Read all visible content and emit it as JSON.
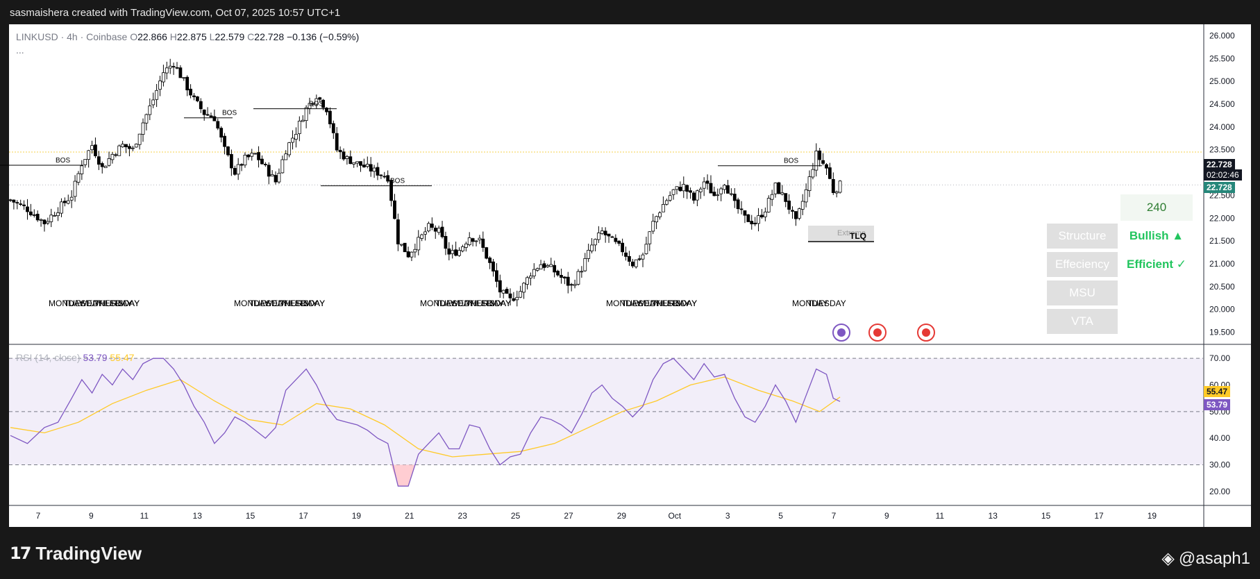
{
  "header": {
    "credit": "sasmaishera created with TradingView.com, Oct 07, 2025 10:57 UTC+1"
  },
  "legend": {
    "symbol": "LINKUSD · 4h · Coinbase",
    "open_label": "O",
    "open": "22.866",
    "high_label": "H",
    "high": "22.875",
    "low_label": "L",
    "low": "22.579",
    "close_label": "C",
    "close": "22.728",
    "change": "−0.136 (−0.59%)",
    "more": "..."
  },
  "price_labels": {
    "last": "22.728",
    "countdown": "02:02:46",
    "second": "22.728"
  },
  "rsi": {
    "title": "RSI (14, close)",
    "value": "53.79",
    "ma_value": "55.47"
  },
  "panel": {
    "timeframe": "240",
    "rows": [
      {
        "label": "Structure",
        "value": "Bullish ▲"
      },
      {
        "label": "Effeciency",
        "value": "Efficient ✓"
      },
      {
        "label": "MSU",
        "value": ""
      },
      {
        "label": "VTA",
        "value": ""
      }
    ]
  },
  "zone": {
    "label": "Extreme",
    "tag": "TLQ"
  },
  "branding": {
    "logo": "TradingView",
    "handle": "@asaph1"
  },
  "colors": {
    "up": "#ffffff",
    "down": "#000000",
    "rsi": "#7e57c2",
    "rsi_ma": "#ffca28",
    "bullish": "#22c55e",
    "last_price": "#131722",
    "second_price": "#26877a"
  },
  "chart_data": [
    {
      "type": "candlestick",
      "title": "LINKUSD · 4h · Coinbase",
      "ylim": [
        19.25,
        26.25
      ],
      "y_ticks": [
        "26.000",
        "25.500",
        "25.000",
        "24.500",
        "24.000",
        "23.500",
        "23.000",
        "22.500",
        "22.000",
        "21.500",
        "21.000",
        "20.500",
        "20.000",
        "19.500"
      ],
      "x_ticks": [
        "7",
        "9",
        "11",
        "13",
        "15",
        "17",
        "19",
        "21",
        "23",
        "25",
        "27",
        "29",
        "Oct",
        "3",
        "5",
        "7",
        "9",
        "11",
        "13",
        "15",
        "17",
        "19"
      ],
      "close_path": [
        [
          0,
          22.4
        ],
        [
          5,
          22.2
        ],
        [
          10,
          21.9
        ],
        [
          14,
          22.2
        ],
        [
          18,
          22.5
        ],
        [
          21,
          23.2
        ],
        [
          24,
          23.6
        ],
        [
          27,
          23.1
        ],
        [
          30,
          23.4
        ],
        [
          33,
          23.6
        ],
        [
          36,
          23.5
        ],
        [
          39,
          24.1
        ],
        [
          42,
          24.6
        ],
        [
          45,
          25.2
        ],
        [
          48,
          25.4
        ],
        [
          51,
          25.0
        ],
        [
          54,
          24.6
        ],
        [
          57,
          24.3
        ],
        [
          60,
          24.2
        ],
        [
          63,
          23.5
        ],
        [
          66,
          23.0
        ],
        [
          69,
          23.3
        ],
        [
          72,
          23.4
        ],
        [
          75,
          23.1
        ],
        [
          78,
          22.8
        ],
        [
          81,
          23.5
        ],
        [
          84,
          23.9
        ],
        [
          87,
          24.4
        ],
        [
          90,
          24.7
        ],
        [
          93,
          24.4
        ],
        [
          96,
          23.5
        ],
        [
          99,
          23.3
        ],
        [
          102,
          23.2
        ],
        [
          105,
          23.1
        ],
        [
          108,
          23.0
        ],
        [
          111,
          22.9
        ],
        [
          114,
          21.5
        ],
        [
          117,
          21.2
        ],
        [
          120,
          21.5
        ],
        [
          123,
          21.8
        ],
        [
          126,
          21.7
        ],
        [
          129,
          21.2
        ],
        [
          132,
          21.3
        ],
        [
          135,
          21.6
        ],
        [
          138,
          21.5
        ],
        [
          141,
          21.0
        ],
        [
          144,
          20.4
        ],
        [
          147,
          20.2
        ],
        [
          150,
          20.4
        ],
        [
          153,
          20.8
        ],
        [
          156,
          21.0
        ],
        [
          159,
          20.9
        ],
        [
          162,
          20.7
        ],
        [
          165,
          20.5
        ],
        [
          168,
          20.9
        ],
        [
          171,
          21.4
        ],
        [
          174,
          21.7
        ],
        [
          177,
          21.5
        ],
        [
          180,
          21.3
        ],
        [
          183,
          21.0
        ],
        [
          186,
          21.2
        ],
        [
          189,
          21.9
        ],
        [
          192,
          22.3
        ],
        [
          195,
          22.6
        ],
        [
          198,
          22.7
        ],
        [
          201,
          22.4
        ],
        [
          204,
          22.8
        ],
        [
          207,
          22.5
        ],
        [
          210,
          22.8
        ],
        [
          213,
          22.3
        ],
        [
          216,
          22.0
        ],
        [
          219,
          21.9
        ],
        [
          222,
          22.2
        ],
        [
          225,
          22.7
        ],
        [
          228,
          22.4
        ],
        [
          231,
          21.9
        ],
        [
          234,
          22.6
        ],
        [
          237,
          23.4
        ],
        [
          240,
          23.1
        ],
        [
          242,
          22.6
        ],
        [
          244,
          22.73
        ]
      ],
      "annotations": [
        "BOS",
        "BOS",
        "BOS",
        "BOS",
        "BOS",
        "Extreme",
        "TLQ"
      ],
      "weekday_labels": [
        "MONDAY",
        "TUESDAY",
        "WEDNESDAY",
        "THURSDAY",
        "FRIDAY"
      ]
    },
    {
      "type": "line",
      "title": "RSI (14, close)",
      "ylim": [
        15,
        75
      ],
      "y_ticks": [
        "70.00",
        "60.00",
        "50.00",
        "40.00",
        "30.00",
        "20.00"
      ],
      "bands": [
        30,
        50,
        70
      ],
      "series": [
        {
          "name": "RSI (14, close)",
          "values": [
            [
              0,
              41
            ],
            [
              5,
              38
            ],
            [
              10,
              44
            ],
            [
              14,
              46
            ],
            [
              18,
              55
            ],
            [
              21,
              62
            ],
            [
              24,
              57
            ],
            [
              27,
              64
            ],
            [
              30,
              60
            ],
            [
              33,
              66
            ],
            [
              36,
              62
            ],
            [
              39,
              68
            ],
            [
              42,
              70
            ],
            [
              45,
              70
            ],
            [
              48,
              66
            ],
            [
              51,
              60
            ],
            [
              54,
              52
            ],
            [
              57,
              46
            ],
            [
              60,
              38
            ],
            [
              63,
              42
            ],
            [
              66,
              48
            ],
            [
              69,
              46
            ],
            [
              72,
              43
            ],
            [
              75,
              40
            ],
            [
              78,
              44
            ],
            [
              81,
              58
            ],
            [
              84,
              62
            ],
            [
              87,
              66
            ],
            [
              90,
              60
            ],
            [
              93,
              52
            ],
            [
              96,
              47
            ],
            [
              99,
              46
            ],
            [
              102,
              45
            ],
            [
              105,
              43
            ],
            [
              108,
              40
            ],
            [
              111,
              38
            ],
            [
              114,
              22
            ],
            [
              117,
              22
            ],
            [
              120,
              34
            ],
            [
              123,
              38
            ],
            [
              126,
              42
            ],
            [
              129,
              36
            ],
            [
              132,
              36
            ],
            [
              135,
              45
            ],
            [
              138,
              44
            ],
            [
              141,
              36
            ],
            [
              144,
              30
            ],
            [
              147,
              33
            ],
            [
              150,
              34
            ],
            [
              153,
              42
            ],
            [
              156,
              48
            ],
            [
              159,
              47
            ],
            [
              162,
              45
            ],
            [
              165,
              42
            ],
            [
              168,
              49
            ],
            [
              171,
              57
            ],
            [
              174,
              60
            ],
            [
              177,
              55
            ],
            [
              180,
              52
            ],
            [
              183,
              48
            ],
            [
              186,
              52
            ],
            [
              189,
              62
            ],
            [
              192,
              68
            ],
            [
              195,
              70
            ],
            [
              198,
              66
            ],
            [
              201,
              62
            ],
            [
              204,
              68
            ],
            [
              207,
              63
            ],
            [
              210,
              64
            ],
            [
              213,
              55
            ],
            [
              216,
              48
            ],
            [
              219,
              46
            ],
            [
              222,
              52
            ],
            [
              225,
              60
            ],
            [
              228,
              54
            ],
            [
              231,
              46
            ],
            [
              234,
              56
            ],
            [
              237,
              66
            ],
            [
              240,
              64
            ],
            [
              242,
              55
            ],
            [
              244,
              53.79
            ]
          ]
        },
        {
          "name": "",
          "values": [
            [
              0,
              44
            ],
            [
              10,
              42
            ],
            [
              20,
              46
            ],
            [
              30,
              53
            ],
            [
              40,
              58
            ],
            [
              50,
              62
            ],
            [
              60,
              54
            ],
            [
              70,
              47
            ],
            [
              80,
              45
            ],
            [
              90,
              53
            ],
            [
              100,
              51
            ],
            [
              110,
              45
            ],
            [
              120,
              36
            ],
            [
              130,
              33
            ],
            [
              140,
              34
            ],
            [
              150,
              35
            ],
            [
              160,
              38
            ],
            [
              170,
              44
            ],
            [
              180,
              50
            ],
            [
              190,
              54
            ],
            [
              200,
              60
            ],
            [
              210,
              63
            ],
            [
              220,
              58
            ],
            [
              230,
              54
            ],
            [
              238,
              50
            ],
            [
              244,
              55.47
            ]
          ]
        }
      ]
    }
  ]
}
